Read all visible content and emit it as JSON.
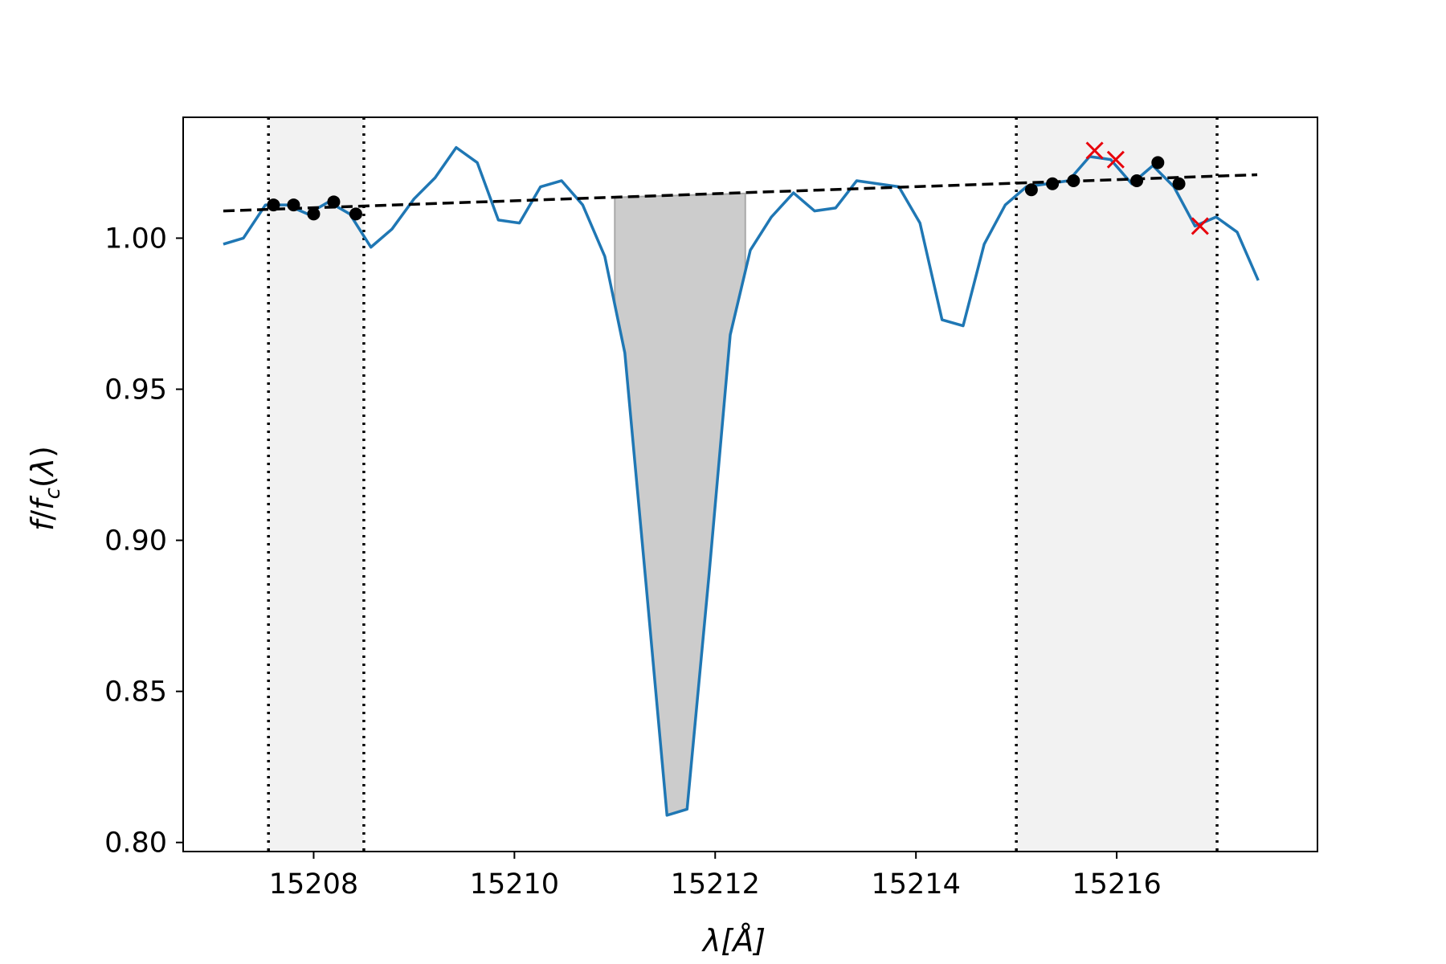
{
  "chart_data": {
    "type": "line",
    "title": "",
    "xlabel": "λ[Å]",
    "ylabel": "f/f_c(λ)",
    "xlim": [
      15206.7,
      15218.0
    ],
    "ylim": [
      0.797,
      1.04
    ],
    "xticks": [
      15208,
      15210,
      15212,
      15214,
      15216
    ],
    "yticks": [
      0.8,
      0.85,
      0.9,
      0.95,
      1.0
    ],
    "xtick_labels": [
      "15208",
      "15210",
      "15212",
      "15214",
      "15216"
    ],
    "ytick_labels": [
      "0.80",
      "0.85",
      "0.90",
      "0.95",
      "1.00"
    ],
    "grid": false,
    "colors": {
      "spectrum": "#1f77b4",
      "continuum": "#000000",
      "fill": "#cccccc",
      "band": "#f2f2f2",
      "used_points": "#000000",
      "rejected_points": "#e8000b"
    },
    "continuum_bands": [
      [
        15207.55,
        15208.5
      ],
      [
        15215.0,
        15217.0
      ]
    ],
    "continuum_line": {
      "x": [
        15207.1,
        15217.4
      ],
      "y": [
        1.009,
        1.021
      ]
    },
    "line_fill": {
      "x": [
        15211.0,
        15212.3
      ],
      "continuum_y": [
        1.0135,
        1.0148
      ]
    },
    "spectrum": {
      "x": [
        15207.1,
        15207.3,
        15207.52,
        15207.73,
        15207.94,
        15208.15,
        15208.36,
        15208.57,
        15208.78,
        15209.0,
        15209.21,
        15209.42,
        15209.63,
        15209.84,
        15210.05,
        15210.26,
        15210.47,
        15210.68,
        15210.9,
        15211.1,
        15211.31,
        15211.52,
        15211.72,
        15211.94,
        15212.15,
        15212.35,
        15212.56,
        15212.78,
        15212.99,
        15213.2,
        15213.41,
        15213.62,
        15213.83,
        15214.04,
        15214.26,
        15214.47,
        15214.68,
        15214.89,
        15215.1,
        15215.31,
        15215.52,
        15215.73,
        15215.94,
        15216.15,
        15216.36,
        15216.57,
        15216.78,
        15216.99,
        15217.2,
        15217.41
      ],
      "y": [
        0.998,
        1.0,
        1.011,
        1.011,
        1.008,
        1.012,
        1.008,
        0.997,
        1.003,
        1.013,
        1.02,
        1.03,
        1.025,
        1.006,
        1.005,
        1.017,
        1.019,
        1.011,
        0.994,
        0.962,
        0.886,
        0.809,
        0.811,
        0.889,
        0.968,
        0.996,
        1.007,
        1.015,
        1.009,
        1.01,
        1.019,
        1.018,
        1.017,
        1.005,
        0.973,
        0.971,
        0.998,
        1.011,
        1.017,
        1.018,
        1.019,
        1.027,
        1.026,
        1.018,
        1.024,
        1.017,
        1.004,
        1.007,
        1.002,
        0.986
      ]
    },
    "used_points": {
      "x": [
        15207.6,
        15207.8,
        15208.0,
        15208.2,
        15208.42,
        15215.15,
        15215.36,
        15215.57,
        15216.2,
        15216.41,
        15216.62
      ],
      "y": [
        1.011,
        1.011,
        1.008,
        1.012,
        1.008,
        1.016,
        1.018,
        1.019,
        1.019,
        1.025,
        1.018
      ]
    },
    "rejected_points": {
      "x": [
        15215.78,
        15215.99,
        15216.83
      ],
      "y": [
        1.029,
        1.026,
        1.004
      ]
    }
  }
}
